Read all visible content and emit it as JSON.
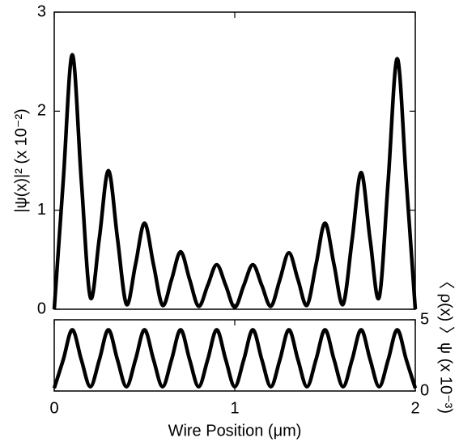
{
  "chart_data": [
    {
      "type": "line",
      "ylabel": "|ψ(x)|² (x 10⁻²)",
      "xlim": [
        0,
        2
      ],
      "xticks": [
        0,
        1,
        2
      ],
      "ylim": [
        0,
        3
      ],
      "yticks": [
        0,
        1,
        2,
        3
      ],
      "x": [
        0,
        0.05,
        0.1,
        0.15,
        0.2,
        0.25,
        0.3,
        0.35,
        0.4,
        0.45,
        0.5,
        0.55,
        0.6,
        0.65,
        0.7,
        0.75,
        0.8,
        0.85,
        0.9,
        0.95,
        1,
        1.05,
        1.1,
        1.15,
        1.2,
        1.25,
        1.3,
        1.35,
        1.4,
        1.45,
        1.5,
        1.55,
        1.6,
        1.65,
        1.7,
        1.75,
        1.8,
        1.85,
        1.9,
        1.95,
        2
      ],
      "series": [
        {
          "color": "#000000",
          "values": [
            0,
            1.3,
            2.57,
            1.3,
            0.12,
            0.72,
            1.4,
            0.72,
            0.05,
            0.45,
            0.87,
            0.45,
            0.04,
            0.3,
            0.58,
            0.3,
            0.03,
            0.24,
            0.45,
            0.24,
            0.02,
            0.24,
            0.45,
            0.24,
            0.03,
            0.3,
            0.57,
            0.3,
            0.04,
            0.45,
            0.87,
            0.45,
            0.05,
            0.7,
            1.38,
            0.7,
            0.12,
            1.3,
            2.53,
            1.3,
            0
          ]
        }
      ]
    },
    {
      "type": "line",
      "xlabel": "Wire Position (μm)",
      "y2label": "〈 ρ(x) 〉ψ (x 10⁻³)",
      "xlim": [
        0,
        2
      ],
      "xticks": [
        0,
        1,
        2
      ],
      "y2lim": [
        0,
        5
      ],
      "y2ticks": [
        0,
        5
      ],
      "x": [
        0,
        0.05,
        0.1,
        0.15,
        0.2,
        0.25,
        0.3,
        0.35,
        0.4,
        0.45,
        0.5,
        0.55,
        0.6,
        0.65,
        0.7,
        0.75,
        0.8,
        0.85,
        0.9,
        0.95,
        1,
        1.05,
        1.1,
        1.15,
        1.2,
        1.25,
        1.3,
        1.35,
        1.4,
        1.45,
        1.5,
        1.55,
        1.6,
        1.65,
        1.7,
        1.75,
        1.8,
        1.85,
        1.9,
        1.95,
        2
      ],
      "series": [
        {
          "color": "#000000",
          "axis": "y2",
          "values": [
            0.2,
            2.2,
            4.3,
            2.2,
            0.3,
            2.2,
            4.3,
            2.2,
            0.3,
            2.2,
            4.3,
            2.2,
            0.3,
            2.2,
            4.3,
            2.2,
            0.3,
            2.2,
            4.3,
            2.2,
            0.3,
            2.2,
            4.3,
            2.2,
            0.3,
            2.2,
            4.3,
            2.2,
            0.3,
            2.2,
            4.3,
            2.2,
            0.3,
            2.2,
            4.3,
            2.2,
            0.3,
            2.2,
            4.3,
            2.2,
            0.2
          ]
        }
      ]
    }
  ]
}
